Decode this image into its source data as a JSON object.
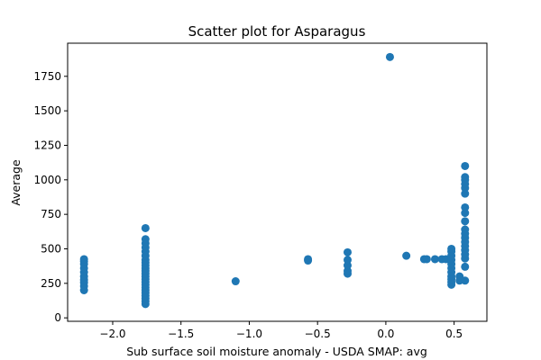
{
  "chart_data": {
    "type": "scatter",
    "title": "Scatter plot for Asparagus",
    "xlabel": "Sub surface soil moisture anomaly - USDA SMAP: avg",
    "ylabel": "Average",
    "xlim": [
      -2.33,
      0.74
    ],
    "ylim": [
      -25,
      1990
    ],
    "xticks": [
      {
        "value": -2.0,
        "label": "−2.0"
      },
      {
        "value": -1.5,
        "label": "−1.5"
      },
      {
        "value": -1.0,
        "label": "−1.0"
      },
      {
        "value": -0.5,
        "label": "−0.5"
      },
      {
        "value": 0.0,
        "label": "0.0"
      },
      {
        "value": 0.5,
        "label": "0.5"
      }
    ],
    "yticks": [
      {
        "value": 0,
        "label": "0"
      },
      {
        "value": 250,
        "label": "250"
      },
      {
        "value": 500,
        "label": "500"
      },
      {
        "value": 750,
        "label": "750"
      },
      {
        "value": 1000,
        "label": "1000"
      },
      {
        "value": 1250,
        "label": "1250"
      },
      {
        "value": 1500,
        "label": "1500"
      },
      {
        "value": 1750,
        "label": "1750"
      }
    ],
    "grid": false,
    "marker_color": "#1f77b4",
    "points": [
      [
        -2.21,
        200
      ],
      [
        -2.21,
        230
      ],
      [
        -2.21,
        255
      ],
      [
        -2.21,
        275
      ],
      [
        -2.21,
        300
      ],
      [
        -2.21,
        330
      ],
      [
        -2.21,
        360
      ],
      [
        -2.21,
        390
      ],
      [
        -2.21,
        410
      ],
      [
        -2.21,
        425
      ],
      [
        -1.76,
        100
      ],
      [
        -1.76,
        120
      ],
      [
        -1.76,
        140
      ],
      [
        -1.76,
        160
      ],
      [
        -1.76,
        180
      ],
      [
        -1.76,
        200
      ],
      [
        -1.76,
        220
      ],
      [
        -1.76,
        240
      ],
      [
        -1.76,
        260
      ],
      [
        -1.76,
        280
      ],
      [
        -1.76,
        300
      ],
      [
        -1.76,
        320
      ],
      [
        -1.76,
        340
      ],
      [
        -1.76,
        360
      ],
      [
        -1.76,
        380
      ],
      [
        -1.76,
        400
      ],
      [
        -1.76,
        420
      ],
      [
        -1.76,
        450
      ],
      [
        -1.76,
        480
      ],
      [
        -1.76,
        510
      ],
      [
        -1.76,
        540
      ],
      [
        -1.76,
        570
      ],
      [
        -1.76,
        650
      ],
      [
        -1.1,
        265
      ],
      [
        -0.57,
        415
      ],
      [
        -0.57,
        425
      ],
      [
        -0.28,
        320
      ],
      [
        -0.28,
        340
      ],
      [
        -0.28,
        380
      ],
      [
        -0.28,
        420
      ],
      [
        -0.28,
        475
      ],
      [
        0.03,
        1890
      ],
      [
        0.15,
        450
      ],
      [
        0.28,
        425
      ],
      [
        0.3,
        425
      ],
      [
        0.36,
        425
      ],
      [
        0.41,
        425
      ],
      [
        0.44,
        425
      ],
      [
        0.48,
        240
      ],
      [
        0.48,
        260
      ],
      [
        0.48,
        280
      ],
      [
        0.48,
        300
      ],
      [
        0.48,
        330
      ],
      [
        0.48,
        360
      ],
      [
        0.48,
        390
      ],
      [
        0.48,
        420
      ],
      [
        0.48,
        450
      ],
      [
        0.48,
        480
      ],
      [
        0.48,
        500
      ],
      [
        0.54,
        270
      ],
      [
        0.54,
        300
      ],
      [
        0.58,
        270
      ],
      [
        0.58,
        370
      ],
      [
        0.58,
        430
      ],
      [
        0.58,
        460
      ],
      [
        0.58,
        490
      ],
      [
        0.58,
        520
      ],
      [
        0.58,
        550
      ],
      [
        0.58,
        580
      ],
      [
        0.58,
        610
      ],
      [
        0.58,
        640
      ],
      [
        0.58,
        700
      ],
      [
        0.58,
        760
      ],
      [
        0.58,
        800
      ],
      [
        0.58,
        900
      ],
      [
        0.58,
        940
      ],
      [
        0.58,
        970
      ],
      [
        0.58,
        1000
      ],
      [
        0.58,
        1020
      ],
      [
        0.58,
        1100
      ]
    ]
  }
}
